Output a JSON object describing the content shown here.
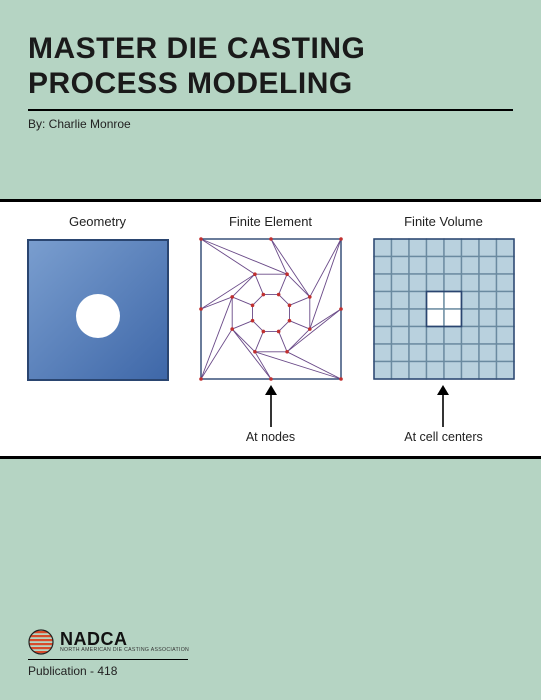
{
  "header": {
    "title_line1": "MASTER DIE CASTING",
    "title_line2": "PROCESS MODELING",
    "byline": "By: Charlie Monroe"
  },
  "figure": {
    "background_color": "#ffffff",
    "band_border_color": "#000000",
    "panels": {
      "geometry": {
        "title": "Geometry",
        "fill_start": "#7a9ecf",
        "fill_end": "#3e67a8",
        "border_color": "#2a4570",
        "hole_fill": "#ffffff"
      },
      "finite_element": {
        "title": "Finite Element",
        "line_color": "#6a4a88",
        "node_color": "#c03030",
        "border_color": "#2a4570",
        "arrow_label": "At nodes"
      },
      "finite_volume": {
        "title": "Finite Volume",
        "cell_fill": "#b9d1de",
        "cell_border": "#6a8aa0",
        "center_border": "#2a4570",
        "arrow_label": "At cell centers",
        "grid_size": 8
      }
    },
    "arrow_color": "#000000"
  },
  "footer": {
    "logo": {
      "main": "NADCA",
      "sub": "NORTH AMERICAN DIE CASTING ASSOCIATION",
      "stripe_color": "#d84a2a",
      "circle_stroke": "#222222"
    },
    "publication": "Publication - 418"
  },
  "page": {
    "background": "#b5d4c3"
  }
}
